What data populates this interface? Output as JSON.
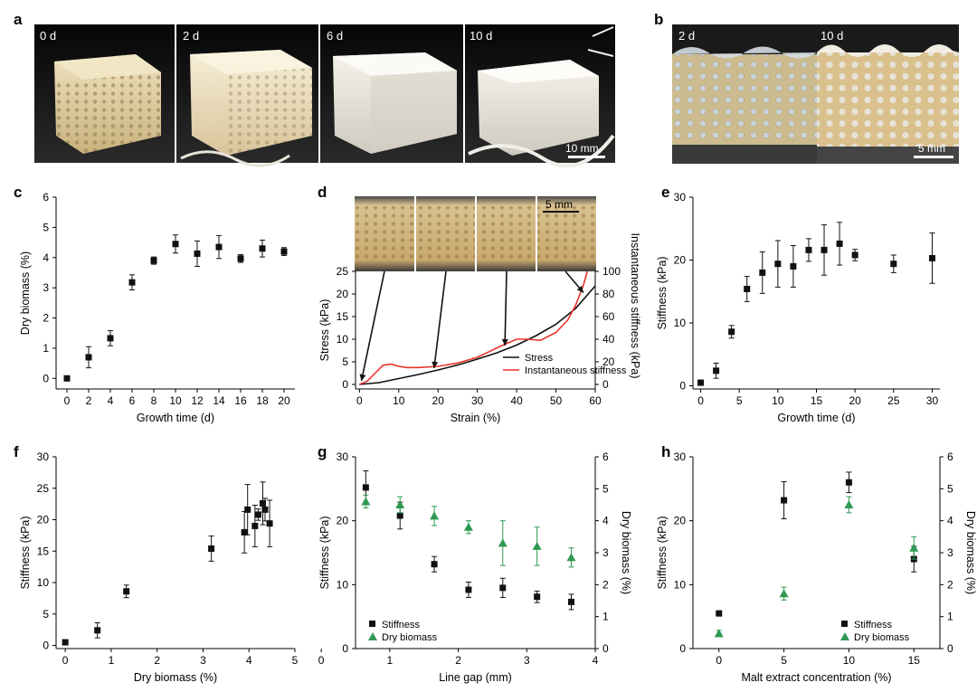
{
  "panels": {
    "a": {
      "label": "a",
      "photo_labels": [
        "0 d",
        "2 d",
        "6 d",
        "10 d"
      ],
      "scale_bar": "10 mm"
    },
    "b": {
      "label": "b",
      "photo_labels": [
        "2 d",
        "10 d"
      ],
      "scale_bar": "5 mm"
    },
    "d_photo": {
      "scale_bar": "5 mm"
    }
  },
  "colors": {
    "black_series": "#111111",
    "green_series": "#2e9a52",
    "red_series": "#e8332a"
  },
  "chart_data": [
    {
      "id": "c",
      "label": "c",
      "type": "scatter",
      "xlabel": "Growth time (d)",
      "ylabel": "Dry biomass (%)",
      "xlim": [
        -1,
        21
      ],
      "ylim": [
        -0.35,
        6
      ],
      "xticks": [
        0,
        2,
        4,
        6,
        8,
        10,
        12,
        14,
        16,
        18,
        20
      ],
      "yticks": [
        0,
        1,
        2,
        3,
        4,
        5,
        6
      ],
      "series": [
        {
          "marker": "square",
          "color": "#111111",
          "x": [
            0,
            2,
            4,
            6,
            8,
            10,
            12,
            14,
            16,
            18,
            20
          ],
          "y": [
            0.0,
            0.7,
            1.33,
            3.18,
            3.9,
            4.45,
            4.13,
            4.35,
            3.97,
            4.3,
            4.2
          ],
          "err": [
            0.02,
            0.35,
            0.25,
            0.25,
            0.12,
            0.3,
            0.42,
            0.38,
            0.13,
            0.28,
            0.13
          ]
        }
      ]
    },
    {
      "id": "d",
      "label": "d",
      "type": "line",
      "xlabel": "Strain (%)",
      "ylabel": "Stress (kPa)",
      "y2label": "Instantaneous stiffness (kPa)",
      "xlim": [
        -1,
        60
      ],
      "ylim": [
        -1,
        25
      ],
      "y2lim": [
        -4,
        100
      ],
      "xticks": [
        0,
        10,
        20,
        30,
        40,
        50,
        60
      ],
      "yticks": [
        0,
        5,
        10,
        15,
        20,
        25
      ],
      "y2ticks": [
        0,
        20,
        40,
        60,
        80,
        100
      ],
      "legend": [
        "Stress",
        "Instantaneous stiffness"
      ],
      "series": [
        {
          "name": "Stress",
          "axis": "left",
          "color": "#111111",
          "x": [
            0,
            5,
            10,
            15,
            20,
            25,
            30,
            35,
            40,
            45,
            50,
            55,
            60
          ],
          "y": [
            0,
            0.4,
            1.3,
            2.2,
            3.2,
            4.3,
            5.6,
            7.0,
            8.7,
            10.8,
            13.3,
            16.8,
            21.8
          ]
        },
        {
          "name": "Instantaneous stiffness",
          "axis": "right",
          "color": "#e8332a",
          "x": [
            0,
            2,
            4,
            6,
            8,
            10,
            12,
            15,
            20,
            25,
            30,
            33,
            36,
            40,
            43,
            46,
            50,
            53,
            55,
            57,
            58
          ],
          "y": [
            0,
            3,
            10,
            17,
            18,
            16,
            15,
            15,
            16,
            19,
            24,
            29,
            34,
            40,
            40,
            39,
            46,
            57,
            70,
            88,
            100
          ]
        }
      ],
      "annotations": [
        {
          "x": 0.5,
          "y": 0,
          "photo": 0
        },
        {
          "x": 19,
          "y": 2.8,
          "photo": 1
        },
        {
          "x": 37,
          "y": 7.8,
          "photo": 2
        },
        {
          "x": 57,
          "y": 19.5,
          "photo": 3
        }
      ]
    },
    {
      "id": "e",
      "label": "e",
      "type": "scatter",
      "xlabel": "Growth time (d)",
      "ylabel": "Stiffness (kPa)",
      "xlim": [
        -1,
        31
      ],
      "ylim": [
        -0.5,
        30
      ],
      "xticks": [
        0,
        5,
        10,
        15,
        20,
        25,
        30
      ],
      "yticks": [
        0,
        10,
        20,
        30
      ],
      "series": [
        {
          "marker": "square",
          "color": "#111111",
          "x": [
            0,
            2,
            4,
            6,
            8,
            10,
            12,
            14,
            16,
            18,
            20,
            25,
            30
          ],
          "y": [
            0.5,
            2.4,
            8.6,
            15.4,
            18.0,
            19.4,
            19.0,
            21.6,
            21.6,
            22.6,
            20.8,
            19.4,
            20.3
          ],
          "err": [
            0.1,
            1.2,
            1.0,
            2.0,
            3.3,
            3.7,
            3.3,
            1.8,
            4.0,
            3.4,
            0.9,
            1.4,
            4.0
          ]
        }
      ]
    },
    {
      "id": "f",
      "label": "f",
      "type": "scatter",
      "xlabel": "Dry biomass (%)",
      "ylabel": "Stiffness (kPa)",
      "xlim": [
        -0.2,
        5
      ],
      "ylim": [
        -0.5,
        30
      ],
      "xticks": [
        0,
        1,
        2,
        3,
        4,
        5
      ],
      "yticks": [
        0,
        5,
        10,
        15,
        20,
        25,
        30
      ],
      "series": [
        {
          "marker": "square",
          "color": "#111111",
          "x": [
            0,
            0.7,
            1.33,
            3.18,
            3.9,
            3.97,
            4.13,
            4.2,
            4.3,
            4.35,
            4.45
          ],
          "y": [
            0.5,
            2.4,
            8.6,
            15.4,
            18.0,
            21.6,
            19.0,
            20.8,
            22.6,
            21.6,
            19.4
          ],
          "err": [
            0.1,
            1.2,
            1.0,
            2.0,
            3.3,
            4.0,
            3.3,
            0.9,
            3.4,
            1.8,
            3.7
          ]
        }
      ]
    },
    {
      "id": "g",
      "label": "g",
      "type": "scatter",
      "xlabel": "Line gap (mm)",
      "ylabel": "Stiffness (kPa)",
      "y2label": "Dry biomass (%)",
      "xlim": [
        0.5,
        4
      ],
      "ylim": [
        0,
        30
      ],
      "y2lim": [
        0,
        6
      ],
      "xticks": [
        0,
        1,
        2,
        3,
        4
      ],
      "yticks": [
        0,
        10,
        20,
        30
      ],
      "y2ticks": [
        0,
        1,
        2,
        3,
        4,
        5,
        6
      ],
      "legend": [
        "Stiffness",
        "Dry biomass"
      ],
      "series": [
        {
          "name": "Stiffness",
          "axis": "left",
          "marker": "square",
          "color": "#111111",
          "x": [
            0.65,
            1.15,
            1.65,
            2.15,
            2.65,
            3.15,
            3.65
          ],
          "y": [
            25.2,
            20.8,
            13.2,
            9.2,
            9.5,
            8.1,
            7.3
          ],
          "err": [
            2.6,
            2.1,
            1.2,
            1.2,
            1.5,
            0.9,
            1.2
          ]
        },
        {
          "name": "Dry biomass",
          "axis": "right",
          "marker": "triangle",
          "color": "#2e9a52",
          "x": [
            0.65,
            1.15,
            1.65,
            2.15,
            2.65,
            3.15,
            3.65
          ],
          "y": [
            4.6,
            4.5,
            4.15,
            3.8,
            3.3,
            3.2,
            2.85
          ],
          "err": [
            0.2,
            0.25,
            0.3,
            0.2,
            0.7,
            0.6,
            0.3
          ]
        }
      ]
    },
    {
      "id": "h",
      "label": "h",
      "type": "scatter",
      "xlabel": "Malt extract concentration (%)",
      "ylabel": "Stiffness (kPa)",
      "y2label": "Dry biomass (%)",
      "xlim": [
        -2,
        17
      ],
      "ylim": [
        0,
        30
      ],
      "y2lim": [
        0,
        6
      ],
      "xticks": [
        0,
        5,
        10,
        15
      ],
      "yticks": [
        0,
        10,
        20,
        30
      ],
      "y2ticks": [
        0,
        1,
        2,
        3,
        4,
        5,
        6
      ],
      "legend": [
        "Stiffness",
        "Dry biomass"
      ],
      "series": [
        {
          "name": "Stiffness",
          "axis": "left",
          "marker": "square",
          "color": "#111111",
          "x": [
            0,
            5,
            10,
            15
          ],
          "y": [
            5.5,
            23.2,
            26.0,
            14.0
          ],
          "err": [
            0.3,
            2.9,
            1.6,
            2.0
          ]
        },
        {
          "name": "Dry biomass",
          "axis": "right",
          "marker": "triangle",
          "color": "#2e9a52",
          "x": [
            0,
            5,
            10,
            15
          ],
          "y": [
            0.47,
            1.72,
            4.5,
            3.15
          ],
          "err": [
            0.1,
            0.2,
            0.25,
            0.35
          ]
        }
      ]
    }
  ]
}
